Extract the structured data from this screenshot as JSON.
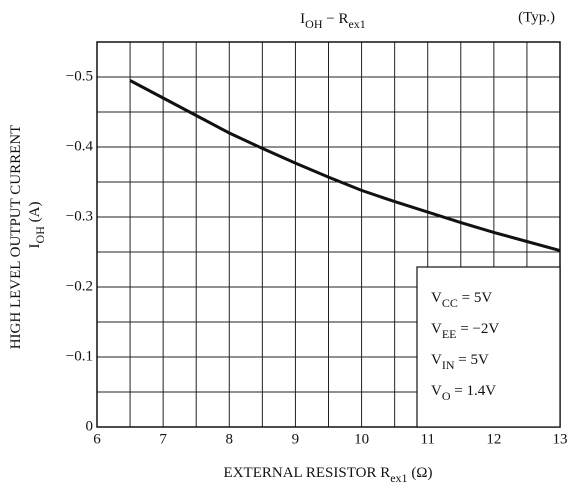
{
  "chart_data": {
    "type": "line",
    "title": [
      {
        "text": "I"
      },
      {
        "text": "OH",
        "sub": true
      },
      {
        "text": " − R"
      },
      {
        "text": "ex1",
        "sub": true
      }
    ],
    "note": "(Typ.)",
    "xlabel": [
      {
        "text": "EXTERNAL RESISTOR  R"
      },
      {
        "text": "ex1",
        "sub": true
      },
      {
        "text": "  (Ω)"
      }
    ],
    "ylabel": [
      {
        "text": "HIGH LEVEL OUTPUT CURRENT"
      }
    ],
    "ylabel2": [
      {
        "text": "I"
      },
      {
        "text": "OH",
        "sub": true
      },
      {
        "text": "  (A)"
      }
    ],
    "annotations": [
      [
        {
          "text": "V"
        },
        {
          "text": "CC",
          "sub": true
        },
        {
          "text": " = 5V"
        }
      ],
      [
        {
          "text": "V"
        },
        {
          "text": "EE",
          "sub": true
        },
        {
          "text": " = −2V"
        }
      ],
      [
        {
          "text": "V"
        },
        {
          "text": "IN",
          "sub": true
        },
        {
          "text": " = 5V"
        }
      ],
      [
        {
          "text": "V"
        },
        {
          "text": "O",
          "sub": true
        },
        {
          "text": " = 1.4V"
        }
      ]
    ],
    "x": [
      6.5,
      7,
      7.5,
      8,
      8.5,
      9,
      9.5,
      10,
      10.5,
      11,
      11.5,
      12,
      12.5,
      13
    ],
    "series": [
      {
        "color": "#111111",
        "values": [
          -0.495,
          -0.47,
          -0.445,
          -0.42,
          -0.398,
          -0.377,
          -0.357,
          -0.338,
          -0.322,
          -0.307,
          -0.292,
          -0.278,
          -0.265,
          -0.252
        ]
      }
    ],
    "xlim": [
      6,
      13
    ],
    "xticks": [
      6,
      7,
      8,
      9,
      10,
      11,
      12,
      13
    ],
    "xminor": [
      6.5,
      7.5,
      8.5,
      9.5,
      10.5,
      11.5,
      12.5
    ],
    "ylim": [
      0,
      -0.55
    ],
    "yticks": [
      0,
      {
        "value": -0.1,
        "label": "−0.1"
      },
      {
        "value": -0.2,
        "label": "−0.2"
      },
      {
        "value": -0.3,
        "label": "−0.3"
      },
      {
        "value": -0.4,
        "label": "−0.4"
      },
      {
        "value": -0.5,
        "label": "−0.5"
      }
    ],
    "yminor": [
      -0.05,
      -0.15,
      -0.25,
      -0.35,
      -0.45,
      -0.55
    ],
    "grid": true
  }
}
